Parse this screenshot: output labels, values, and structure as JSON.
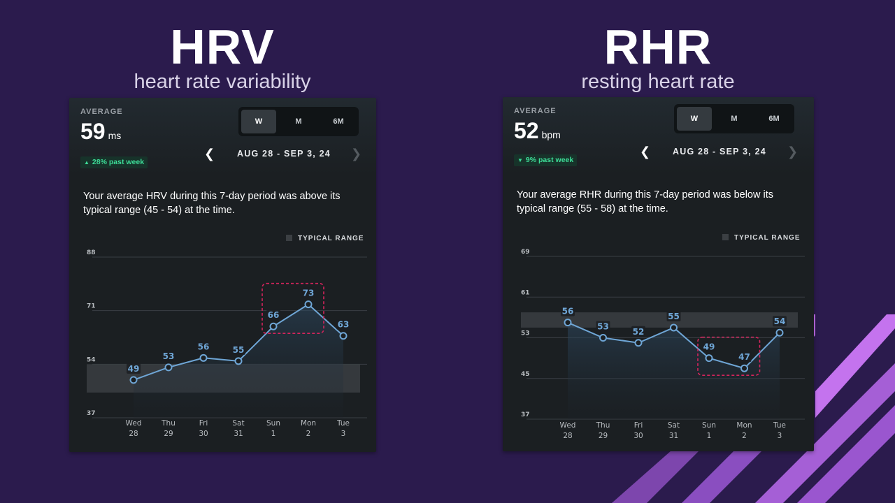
{
  "hrv": {
    "title": "HRV",
    "subtitle": "heart rate variability",
    "average_label": "AVERAGE",
    "average_value": "59",
    "average_unit": "ms",
    "change_badge": "28% past week",
    "change_direction": "up",
    "segments": [
      "W",
      "M",
      "6M"
    ],
    "active_segment": "W",
    "date_range": "AUG 28 - SEP 3, 24",
    "description": "Your average HRV during this 7-day period was above its typical range (45 - 54) at the time.",
    "legend_label": "TYPICAL RANGE"
  },
  "rhr": {
    "title": "RHR",
    "subtitle": "resting heart rate",
    "average_label": "AVERAGE",
    "average_value": "52",
    "average_unit": "bpm",
    "change_badge": "9% past week",
    "change_direction": "down",
    "segments": [
      "W",
      "M",
      "6M"
    ],
    "active_segment": "W",
    "date_range": "AUG 28 - SEP 3, 24",
    "description": "Your average RHR during this 7-day period was below its typical range (55 - 58) at the time.",
    "legend_label": "TYPICAL RANGE"
  },
  "colors": {
    "background": "#2b1b4d",
    "card": "#1b1f22",
    "line": "#6fa6d6",
    "highlight_box": "#d6245c",
    "badge_text": "#3ddc97",
    "stripe": "#b760e0"
  },
  "chart_data": [
    {
      "type": "line",
      "x": [
        "Wed 28",
        "Thu 29",
        "Fri 30",
        "Sat 31",
        "Sun 1",
        "Mon 2",
        "Tue 3"
      ],
      "x_day": [
        "Wed",
        "Thu",
        "Fri",
        "Sat",
        "Sun",
        "Mon",
        "Tue"
      ],
      "x_date": [
        "28",
        "29",
        "30",
        "31",
        "1",
        "2",
        "3"
      ],
      "values": [
        49,
        53,
        56,
        55,
        66,
        73,
        63
      ],
      "y_ticks": [
        37,
        54,
        71,
        88
      ],
      "ylim": [
        37,
        88
      ],
      "typical_range": [
        45,
        54
      ],
      "highlight_points": [
        4,
        5
      ],
      "legend": "TYPICAL RANGE",
      "grid": true
    },
    {
      "type": "line",
      "x": [
        "Wed 28",
        "Thu 29",
        "Fri 30",
        "Sat 31",
        "Sun 1",
        "Mon 2",
        "Tue 3"
      ],
      "x_day": [
        "Wed",
        "Thu",
        "Fri",
        "Sat",
        "Sun",
        "Mon",
        "Tue"
      ],
      "x_date": [
        "28",
        "29",
        "30",
        "31",
        "1",
        "2",
        "3"
      ],
      "values": [
        56,
        53,
        52,
        55,
        49,
        47,
        54
      ],
      "y_ticks": [
        37,
        45,
        53,
        61,
        69
      ],
      "ylim": [
        37,
        69
      ],
      "typical_range": [
        55,
        58
      ],
      "highlight_points": [
        4,
        5
      ],
      "legend": "TYPICAL RANGE",
      "grid": true
    }
  ]
}
